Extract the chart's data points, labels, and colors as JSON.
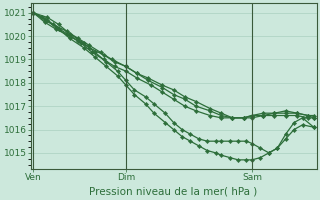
{
  "bg_color": "#cce8dc",
  "grid_color": "#aad0c0",
  "line_color": "#2d6e3a",
  "xlabel": "Pression niveau de la mer( hPa )",
  "xlabel_fontsize": 7.5,
  "ylim": [
    1014.3,
    1021.4
  ],
  "yticks": [
    1015,
    1016,
    1017,
    1018,
    1019,
    1020,
    1021
  ],
  "ytick_fontsize": 6.5,
  "xtick_labels": [
    "Ven",
    "Dim",
    "Sam"
  ],
  "xtick_fontsize": 6.5,
  "xtick_pos": [
    0.0,
    0.33,
    0.78
  ],
  "lines": [
    {
      "x": [
        0.0,
        0.03,
        0.07,
        0.12,
        0.16,
        0.2,
        0.24,
        0.28,
        0.33,
        0.37,
        0.41,
        0.46,
        0.5,
        0.54,
        0.58,
        0.63,
        0.67,
        0.71,
        0.75,
        0.78,
        0.82,
        0.86,
        0.9,
        0.94,
        0.98,
        1.0
      ],
      "y": [
        1021.0,
        1020.8,
        1020.5,
        1020.2,
        1019.9,
        1019.6,
        1019.3,
        1019.0,
        1018.7,
        1018.4,
        1018.2,
        1017.9,
        1017.7,
        1017.4,
        1017.2,
        1016.9,
        1016.7,
        1016.5,
        1016.5,
        1016.5,
        1016.6,
        1016.7,
        1016.8,
        1016.7,
        1016.6,
        1016.5
      ]
    },
    {
      "x": [
        0.0,
        0.04,
        0.08,
        0.12,
        0.16,
        0.2,
        0.25,
        0.29,
        0.33,
        0.37,
        0.41,
        0.46,
        0.5,
        0.54,
        0.58,
        0.63,
        0.67,
        0.71,
        0.75,
        0.78,
        0.82,
        0.86,
        0.9,
        0.94,
        0.98,
        1.0
      ],
      "y": [
        1021.0,
        1020.7,
        1020.4,
        1020.1,
        1019.8,
        1019.5,
        1019.2,
        1018.9,
        1018.7,
        1018.4,
        1018.1,
        1017.8,
        1017.5,
        1017.3,
        1017.0,
        1016.8,
        1016.6,
        1016.5,
        1016.5,
        1016.6,
        1016.7,
        1016.7,
        1016.7,
        1016.7,
        1016.6,
        1016.6
      ]
    },
    {
      "x": [
        0.0,
        0.04,
        0.08,
        0.13,
        0.17,
        0.21,
        0.25,
        0.29,
        0.33,
        0.37,
        0.42,
        0.46,
        0.5,
        0.54,
        0.58,
        0.63,
        0.67,
        0.71,
        0.75,
        0.78,
        0.82,
        0.86,
        0.9,
        0.94,
        0.98,
        1.0
      ],
      "y": [
        1021.0,
        1020.6,
        1020.3,
        1020.0,
        1019.7,
        1019.3,
        1019.0,
        1018.7,
        1018.5,
        1018.2,
        1017.9,
        1017.6,
        1017.3,
        1017.0,
        1016.8,
        1016.6,
        1016.5,
        1016.5,
        1016.5,
        1016.6,
        1016.6,
        1016.6,
        1016.6,
        1016.6,
        1016.5,
        1016.5
      ]
    },
    {
      "x": [
        0.0,
        0.05,
        0.09,
        0.13,
        0.18,
        0.22,
        0.26,
        0.3,
        0.33,
        0.36,
        0.4,
        0.43,
        0.47,
        0.5,
        0.53,
        0.56,
        0.59,
        0.62,
        0.65,
        0.67,
        0.7,
        0.73,
        0.76,
        0.78,
        0.81,
        0.84,
        0.87,
        0.9,
        0.93,
        0.96,
        1.0
      ],
      "y": [
        1021.0,
        1020.8,
        1020.5,
        1020.1,
        1019.7,
        1019.3,
        1018.9,
        1018.5,
        1018.1,
        1017.7,
        1017.4,
        1017.1,
        1016.7,
        1016.3,
        1016.0,
        1015.8,
        1015.6,
        1015.5,
        1015.5,
        1015.5,
        1015.5,
        1015.5,
        1015.5,
        1015.4,
        1015.2,
        1015.0,
        1015.2,
        1015.8,
        1016.3,
        1016.5,
        1016.1
      ]
    },
    {
      "x": [
        0.0,
        0.05,
        0.09,
        0.13,
        0.18,
        0.22,
        0.26,
        0.3,
        0.33,
        0.36,
        0.4,
        0.43,
        0.47,
        0.5,
        0.53,
        0.56,
        0.59,
        0.62,
        0.65,
        0.67,
        0.7,
        0.73,
        0.76,
        0.78,
        0.81,
        0.84,
        0.87,
        0.9,
        0.93,
        0.96,
        1.0
      ],
      "y": [
        1021.0,
        1020.7,
        1020.3,
        1019.9,
        1019.5,
        1019.1,
        1018.7,
        1018.3,
        1017.9,
        1017.5,
        1017.1,
        1016.7,
        1016.3,
        1016.0,
        1015.7,
        1015.5,
        1015.3,
        1015.1,
        1015.0,
        1014.9,
        1014.8,
        1014.7,
        1014.7,
        1014.7,
        1014.8,
        1015.0,
        1015.2,
        1015.6,
        1016.0,
        1016.2,
        1016.1
      ]
    }
  ]
}
